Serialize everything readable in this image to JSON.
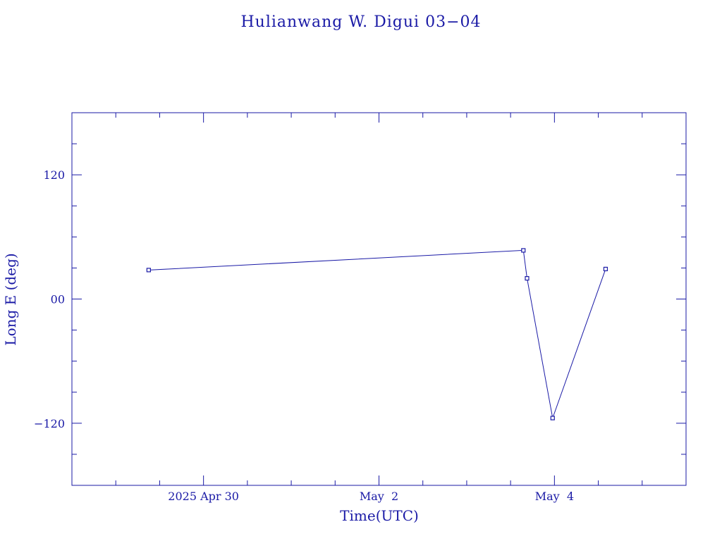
{
  "colors": {
    "ink": "#1a1aa6"
  },
  "chart_data": {
    "type": "line",
    "title": "Hulianwang W. Digui 03−04",
    "xlabel": "Time(UTC)",
    "ylabel": "Long E (deg)",
    "x_range": [
      "2025-04-28T12:00",
      "2025-05-05T12:00"
    ],
    "ylim": [
      -180,
      180
    ],
    "y_ticks": [
      {
        "value": 120,
        "label": "120"
      },
      {
        "value": 0,
        "label": "00"
      },
      {
        "value": -120,
        "label": "−120"
      }
    ],
    "x_ticks": [
      {
        "value": "2025-04-30T00:00",
        "label": "2025 Apr 30"
      },
      {
        "value": "2025-05-02T00:00",
        "label": "May  2"
      },
      {
        "value": "2025-05-04T00:00",
        "label": "May  4"
      }
    ],
    "grid": false,
    "markers": "square",
    "series": [
      {
        "points": [
          {
            "x": "2025-04-29T09:00",
            "y": 28
          },
          {
            "x": "2025-05-03T15:30",
            "y": 47
          },
          {
            "x": "2025-05-03T16:30",
            "y": 20
          },
          {
            "x": "2025-05-03T23:30",
            "y": -115
          },
          {
            "x": "2025-05-04T14:00",
            "y": 29
          }
        ]
      }
    ]
  }
}
